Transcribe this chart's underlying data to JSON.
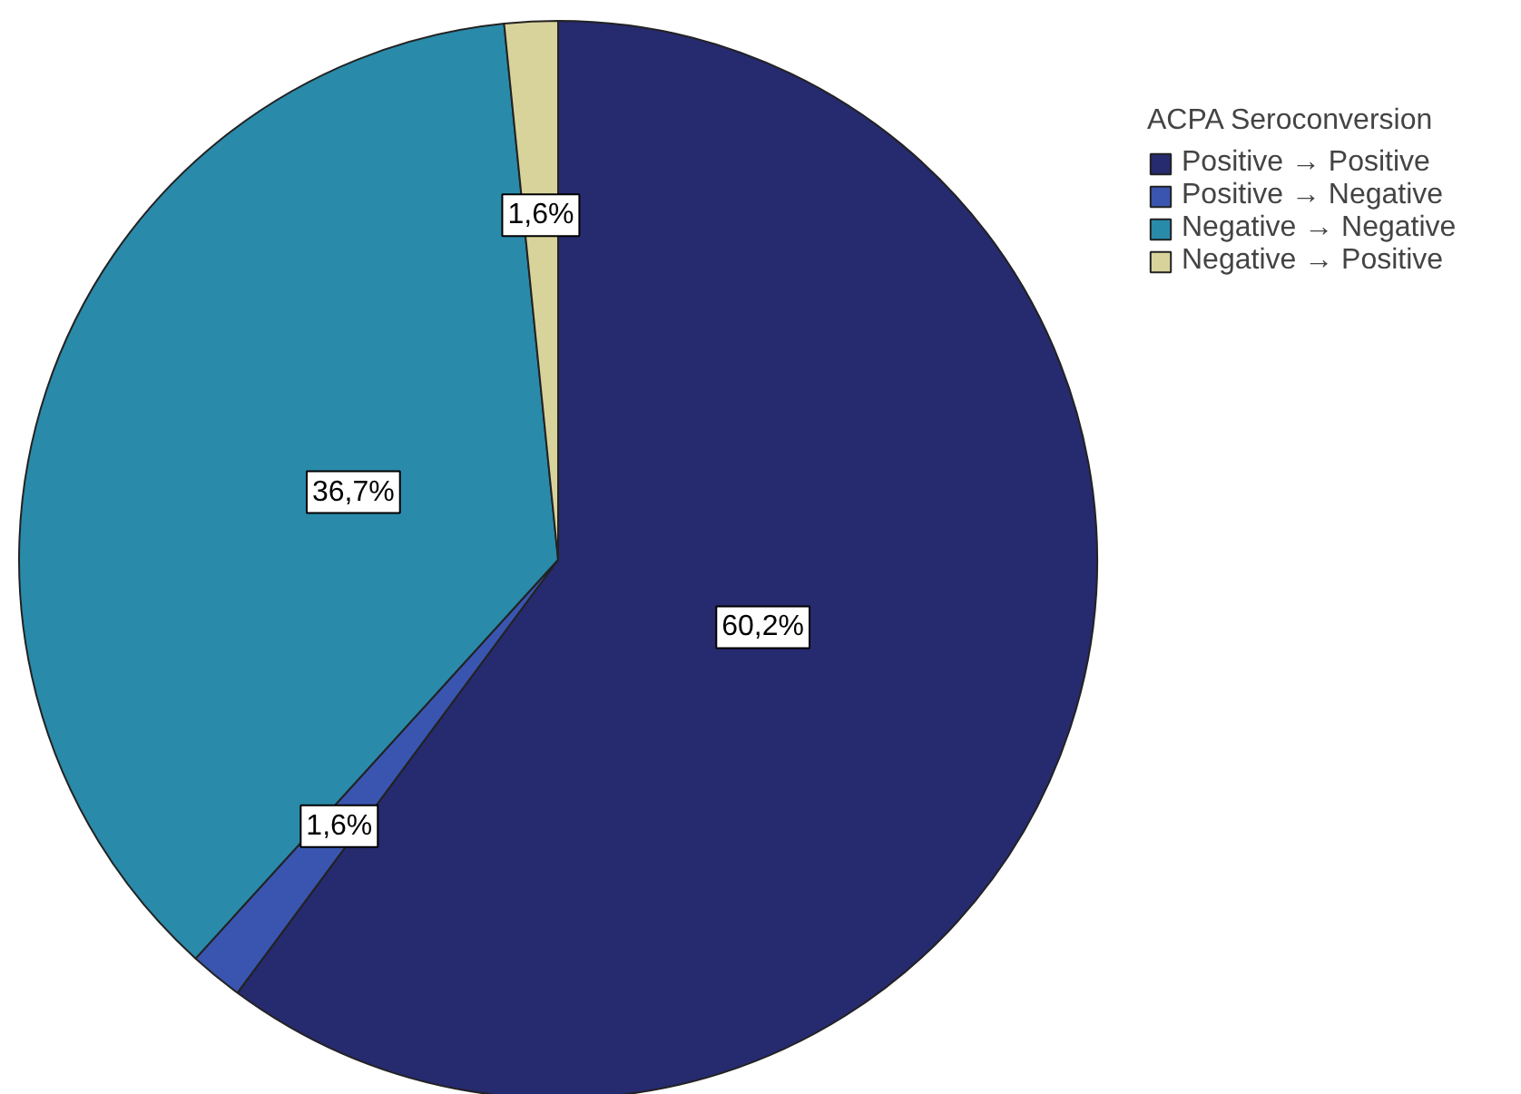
{
  "chart_data": {
    "type": "pie",
    "legend_title": "ACPA Seroconversion",
    "legend": "top right",
    "categories": [
      "Positive → Positive",
      "Positive → Negative",
      "Negative → Negative",
      "Negative → Positive"
    ],
    "values": [
      60.2,
      1.6,
      36.7,
      1.6
    ],
    "colors": [
      "#262a6e",
      "#3a55b0",
      "#2a8aaa",
      "#d8d39a"
    ],
    "value_labels": [
      "60,2%",
      "1,6%",
      "36,7%",
      "1,6%"
    ]
  }
}
